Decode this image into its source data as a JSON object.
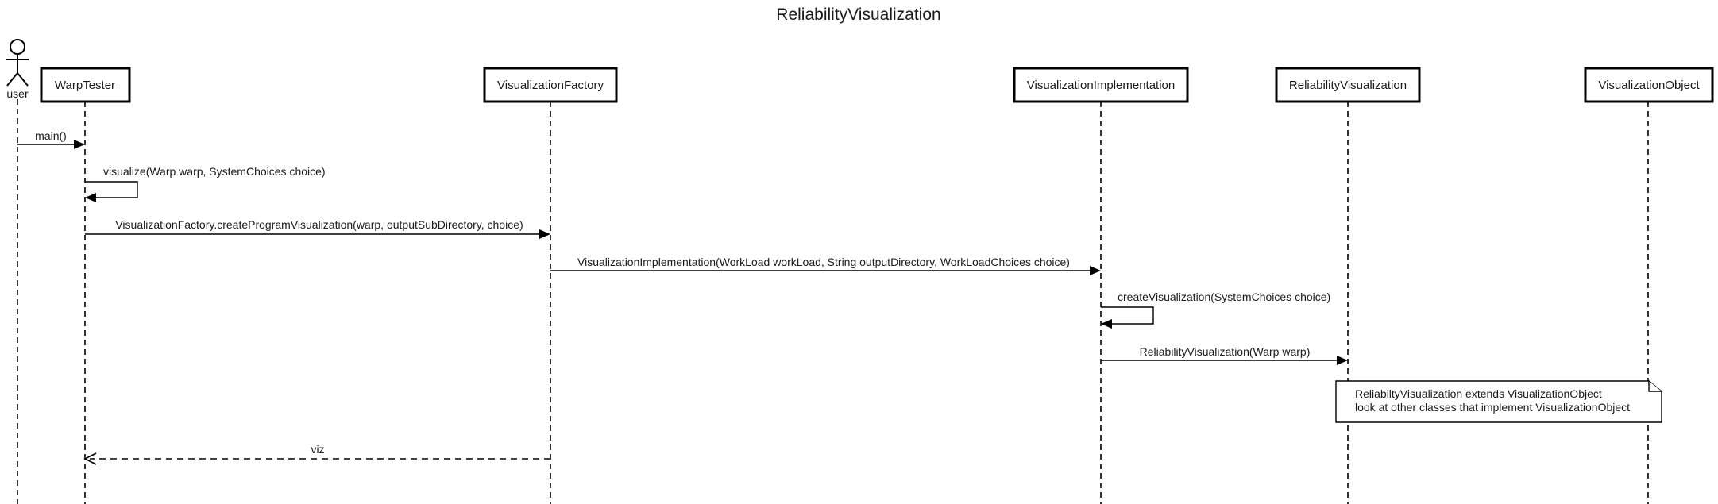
{
  "diagram": {
    "title": "ReliabilityVisualization",
    "actor": {
      "label": "user"
    },
    "participants": [
      {
        "label": "WarpTester"
      },
      {
        "label": "VisualizationFactory"
      },
      {
        "label": "VisualizationImplementation"
      },
      {
        "label": "ReliabilityVisualization"
      },
      {
        "label": "VisualizationObject"
      }
    ],
    "messages": [
      {
        "from": "user",
        "to": "WarpTester",
        "label": "main()",
        "kind": "sync"
      },
      {
        "from": "WarpTester",
        "to": "WarpTester",
        "label": "visualize(Warp warp, SystemChoices choice)",
        "kind": "self"
      },
      {
        "from": "WarpTester",
        "to": "VisualizationFactory",
        "label": "VisualizationFactory.createProgramVisualization(warp, outputSubDirectory, choice)",
        "kind": "sync"
      },
      {
        "from": "VisualizationFactory",
        "to": "VisualizationImplementation",
        "label": "VisualizationImplementation(WorkLoad workLoad, String outputDirectory, WorkLoadChoices choice)",
        "kind": "sync"
      },
      {
        "from": "VisualizationImplementation",
        "to": "VisualizationImplementation",
        "label": "createVisualization(SystemChoices choice)",
        "kind": "self"
      },
      {
        "from": "VisualizationImplementation",
        "to": "ReliabilityVisualization",
        "label": "ReliabilityVisualization(Warp warp)",
        "kind": "sync"
      },
      {
        "from": "VisualizationFactory",
        "to": "WarpTester",
        "label": "viz",
        "kind": "return"
      }
    ],
    "note": {
      "lines": [
        "ReliabiltyVisualization extends VisualizationObject",
        "look at other classes that implement VisualizationObject"
      ]
    }
  }
}
